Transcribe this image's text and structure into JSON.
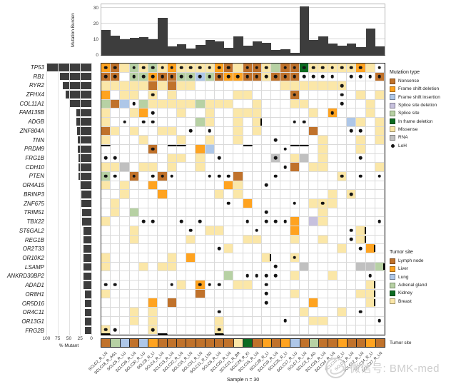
{
  "chart_data": {
    "type": "heatmap",
    "title": "SCLC oncoprint (comut plot)",
    "genes": [
      "TP53",
      "RB1",
      "RYR2",
      "ZFHX4",
      "COL11A1",
      "FAM135B",
      "ADGB",
      "ZNF804A",
      "TNN",
      "PRDM9",
      "FRG1B",
      "CDH10",
      "PTEN",
      "OR4A15",
      "BRINP3",
      "ZNF675",
      "TRIM51",
      "TBX22",
      "ST6GAL2",
      "REG1B",
      "OR2T33",
      "OR10K2",
      "LSAMP",
      "ANKRD30BP2",
      "ADAD1",
      "OR8H1",
      "OR5D16",
      "OR4C11",
      "OR13G1",
      "FRG2B"
    ],
    "samples": [
      "SCLC2_R_LN",
      "SCLC18_R_AG1",
      "SCLC5_R_LU",
      "SCLC26_R_LN",
      "SCLC30_R_LU",
      "SCLC8_R_LI",
      "SCLC4_R_LN",
      "SCLC13_R_LN",
      "SCLC22_R_LN",
      "SCLC15_R_LN",
      "SCLC31_R_LN",
      "SCLC11_R_LN2",
      "SCLC6_R_LN",
      "SCLC20_R_LN",
      "SCLC21_R_BR",
      "SCLC29_R_KI",
      "SCLC16_R_LN",
      "SCLC28_R_LI",
      "SCLC19_R_LN",
      "SCLC25_R_LI",
      "SCLC17_R_LU",
      "SCLC7_R_LN",
      "SCLC3_R_AG",
      "SCLC23_R_LN",
      "SCLC24_R_LN",
      "SCLC10_R_LI",
      "SCLC9_R_LN",
      "SCLC12_R_LN",
      "SCLC14_R_LI",
      "SCLC27_R_LN"
    ],
    "sample_sites": [
      "LN",
      "AG",
      "LU",
      "LN",
      "LU",
      "LI",
      "LN",
      "LN",
      "LN",
      "LN",
      "LN",
      "LN",
      "LN",
      "LN",
      "BR",
      "KI",
      "LN",
      "LI",
      "LN",
      "LI",
      "LU",
      "LN",
      "AG",
      "LN",
      "LN",
      "LI",
      "LN",
      "LN",
      "LI",
      "LN"
    ],
    "mutation_burden": {
      "ylabel": "Mutation Burden",
      "yticks": [
        0,
        10,
        20,
        30
      ],
      "ymax": 32.5,
      "values": [
        16,
        12.5,
        10,
        11,
        11.5,
        10,
        24,
        5.5,
        7,
        4,
        6.5,
        9.5,
        8.5,
        4.5,
        12,
        6,
        8.5,
        8,
        3,
        3.5,
        1.5,
        31,
        9.5,
        12,
        7.5,
        6,
        7.5,
        5,
        17,
        5.5
      ]
    },
    "percent_mutant": {
      "xlabel": "% Mutant",
      "xticks": [
        100,
        75,
        50,
        25,
        0
      ],
      "values": [
        100,
        70,
        63,
        57,
        50,
        33,
        33,
        31,
        30,
        30,
        28,
        28,
        28,
        25,
        23,
        22,
        20,
        20,
        18,
        18,
        18,
        18,
        18,
        18,
        18,
        15,
        14,
        14,
        14,
        14
      ]
    },
    "grid_types": [
      "FNMSMSMFMMMMFNMNNMSNNGMMMMMFM.",
      "NN.SSFNNSSISNFFNNMNNN........N",
      "MMMMMNMNMM.........MMMMMMM....",
      "F.MM.M.M......MM....N......M.M",
      "SNI.SMMMMMSMMM..M...MM......M.",
      "M..MF...M..M..MMM.....M.F...M.",
      "M.........SM..M.M.........IM.M",
      "NM.M..MM......M.M.....N......M",
      "M...M...M..M..M........M...M.M",
      ".....N....FI...........M...M..",
      ".......MM.M.......R.MR.M......",
      "MMR.MM.M..M.........N.MM.....M",
      "S..N..N.......N..........M....",
      "M.M..F.......FM...............",
      "..M...F.....M.M.........M.M...",
      ".M.............F......MMM.....",
      ".M.S...................M......",
      "M...................F.DM......",
      "...M.......MM.......F......M..",
      "...M.....M.....MM...M..M...M..",
      ".............M...........M..F.",
      "M......M.F.......M..M.........",
      "M...M.MM.............R.....RRS",
      ".............S......M...M.....",
      "........M.F...MM............M.",
      "M.........N.........M......MM.",
      ".....F.N..............F.....M.",
      "...M.M...............M...M....",
      "...M.M......M.........MM......",
      "M....M......M................."
    ],
    "grid_loh": [
      "oo.ooooooooooo.ooo.ooooooooo.o",
      "oo.oooooooooooooooooooooo.oooo",
      ".........................o....",
      ".....o..............o....o....",
      "...o.....................o....",
      ".....o..................o.....",
      "..o.oo..............oo........",
      ".........o.o..............oo..",
      "..................o...........",
      ".....o.............o..........",
      "oo..........o.....o........o..",
      "...................o..........",
      "oo.o.ooo...ooo....o......o.o.o",
      ".................o............",
      "..........................o...",
      ".............o......o..o......",
      ".................o............",
      "....oo..o.o....o.ooo.........o",
      ".........o......o.........o...",
      "..........................o...",
      "............o..............o..",
      "....................o.........",
      "..................o...........",
      "...............oooo.........o.",
      "oo.....o..ooo....o............",
      ".................o............",
      ".................o............",
      "............o..............o..",
      "...................o.........o",
      "oo...o......o................."
    ],
    "cell_ticks": [
      [
        7,
        17
      ],
      [
        19,
        28
      ],
      [
        20,
        28
      ],
      [
        21,
        29
      ],
      [
        22,
        18
      ],
      [
        23,
        30
      ],
      [
        25,
        29
      ],
      [
        26,
        29
      ],
      [
        27,
        29
      ]
    ],
    "cell_dashes_top": [
      [
        10,
        1
      ],
      [
        10,
        8
      ],
      [
        10,
        9
      ],
      [
        10,
        16
      ],
      [
        10,
        21
      ],
      [
        10,
        22
      ]
    ],
    "cell_dashes_bottom": [
      [
        30,
        1
      ],
      [
        30,
        7
      ],
      [
        30,
        13
      ]
    ],
    "type_colors": {
      "M": "#FBE7A8",
      "N": "#C0722B",
      "F": "#FFA320",
      "I": "#AEC7E8",
      "D": "#C7C1DE",
      "S": "#B7D1A4",
      "G": "#0D6B21",
      "R": "#C0C0C0"
    },
    "site_colors": {
      "LN": "#C0722B",
      "LI": "#FFA320",
      "LU": "#AEC7E8",
      "AG": "#B7D1A4",
      "KI": "#0D6B21",
      "BR": "#FBE7A8"
    },
    "bar_color": "#3d3d3d",
    "loh_color": "#141414"
  },
  "legend_mutation": {
    "title": "Mutation type",
    "items": [
      {
        "key": "N",
        "label": "Nonsense",
        "color": "#C0722B"
      },
      {
        "key": "F",
        "label": "Frame shift deletion",
        "color": "#FFA320"
      },
      {
        "key": "I",
        "label": "Frame shift insertion",
        "color": "#AEC7E8"
      },
      {
        "key": "D",
        "label": "Splice site deletion",
        "color": "#C7C1DE"
      },
      {
        "key": "S",
        "label": "Splice site",
        "color": "#B7D1A4"
      },
      {
        "key": "G",
        "label": "In frame deletion",
        "color": "#0D6B21"
      },
      {
        "key": "M",
        "label": "Missense",
        "color": "#FBE7A8"
      },
      {
        "key": "R",
        "label": "RNA",
        "color": "#C0C0C0"
      }
    ],
    "loh_label": "LoH"
  },
  "legend_site": {
    "title": "Tumor site",
    "items": [
      {
        "key": "LN",
        "label": "Lymph node",
        "color": "#C0722B"
      },
      {
        "key": "LI",
        "label": "Liver",
        "color": "#FFA320"
      },
      {
        "key": "LU",
        "label": "Lung",
        "color": "#AEC7E8"
      },
      {
        "key": "AG",
        "label": "Adrenal gland",
        "color": "#B7D1A4"
      },
      {
        "key": "KI",
        "label": "Kidney",
        "color": "#0D6B21"
      },
      {
        "key": "BR",
        "label": "Breast",
        "color": "#FBE7A8"
      }
    ]
  },
  "bottom": {
    "bar_label": "Tumor site",
    "caption": "Sample n = 30"
  },
  "watermark": {
    "text": "微信号: BMK-med"
  }
}
